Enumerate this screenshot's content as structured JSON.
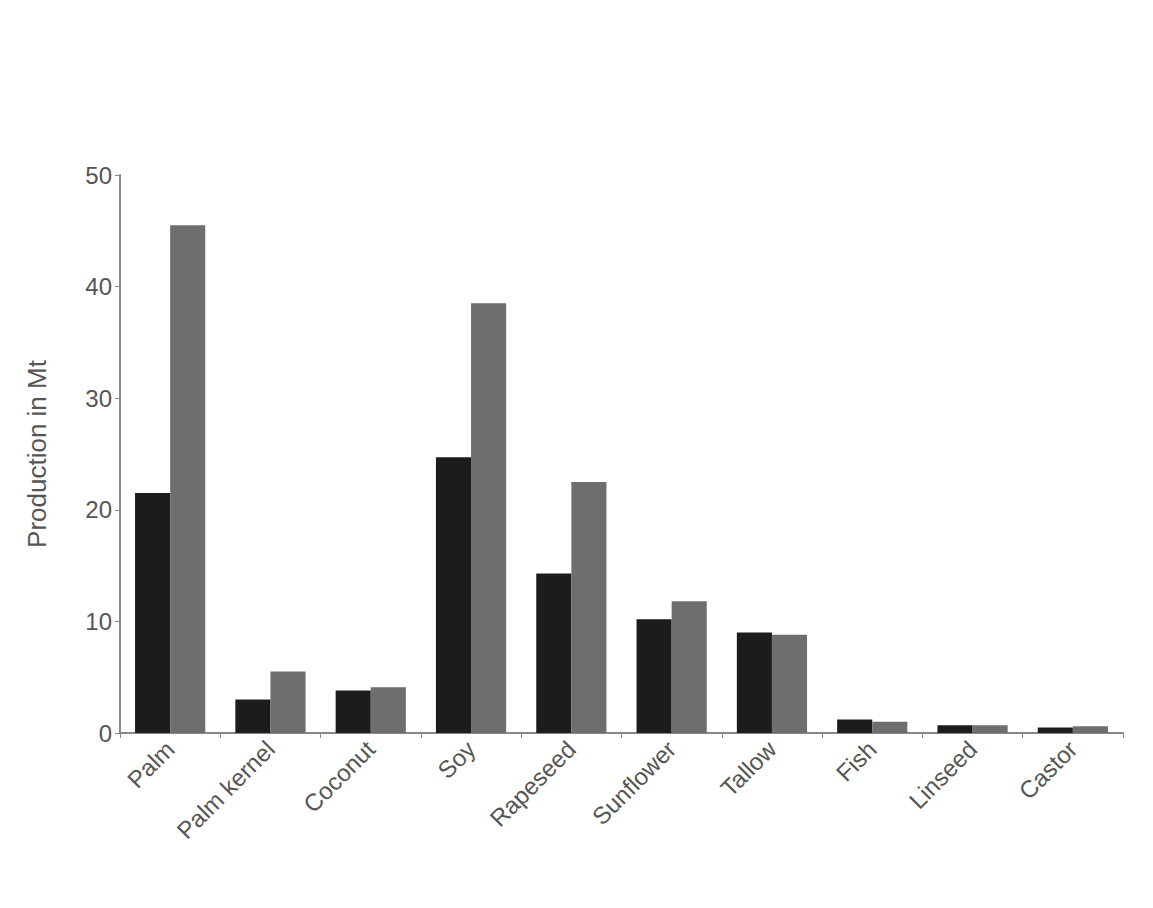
{
  "chart_data": {
    "type": "bar",
    "y_label": "Production in Mt",
    "categories": [
      "Palm",
      "Palm kernel",
      "Coconut",
      "Soy",
      "Rapeseed",
      "Sunflower",
      "Tallow",
      "Fish",
      "Linseed",
      "Castor"
    ],
    "series": [
      {
        "color": "#1c1c1c",
        "values": [
          21.5,
          3.0,
          3.8,
          24.7,
          14.3,
          10.2,
          9.0,
          1.2,
          0.7,
          0.5
        ]
      },
      {
        "color": "#6e6e6e",
        "values": [
          45.5,
          5.5,
          4.1,
          38.5,
          22.5,
          11.8,
          8.8,
          1.0,
          0.7,
          0.6
        ]
      }
    ],
    "ylim": [
      0,
      50
    ],
    "yticks": [
      0,
      10,
      20,
      30,
      40,
      50
    ],
    "grid": false
  }
}
